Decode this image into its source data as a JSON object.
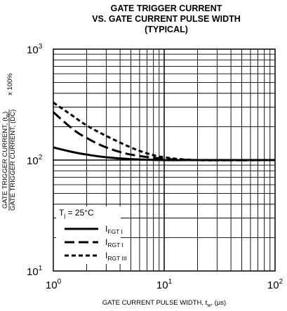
{
  "chart_data": {
    "type": "line",
    "title": [
      "GATE TRIGGER CURRENT",
      "VS. GATE CURRENT PULSE WIDTH",
      "(TYPICAL)"
    ],
    "x_scale": "log",
    "y_scale": "log",
    "xlim": [
      1,
      100
    ],
    "ylim": [
      10,
      1000
    ],
    "x_ticks": [
      {
        "base": "10",
        "exp": "0"
      },
      {
        "base": "10",
        "exp": "1"
      },
      {
        "base": "10",
        "exp": "2"
      }
    ],
    "y_ticks": [
      {
        "base": "10",
        "exp": "1"
      },
      {
        "base": "10",
        "exp": "2"
      },
      {
        "base": "10",
        "exp": "3"
      }
    ],
    "xlabel": {
      "main": "GATE CURRENT PULSE WIDTH, t",
      "sub": "w",
      "tail": ", (µs)"
    },
    "ylabel": {
      "line1_main": "GATE TRIGGER CURRENT, (t",
      "line1_sub": "w",
      "line1_tail": ")",
      "line2_main": "GATE TRIGGER CURRENT, (DC)",
      "multiplier": "x 100%"
    },
    "grid": true,
    "legend_placement": "bottom-left",
    "legend_title": {
      "main": "T",
      "sub": "j",
      "tail": " = 25°C"
    },
    "series": [
      {
        "name_main": "I",
        "name_sub": "FGT I",
        "style": "solid",
        "x": [
          1,
          1.5,
          2,
          3,
          5,
          10,
          20,
          100
        ],
        "y": [
          130,
          118,
          112,
          106,
          102,
          100,
          100,
          100
        ]
      },
      {
        "name_main": "I",
        "name_sub": "RGT I",
        "style": "long-dash",
        "x": [
          1,
          1.5,
          2,
          3,
          5,
          10,
          20,
          100
        ],
        "y": [
          270,
          190,
          158,
          130,
          112,
          103,
          100,
          100
        ]
      },
      {
        "name_main": "I",
        "name_sub": "RGT III",
        "style": "short-dash",
        "x": [
          1,
          1.5,
          2,
          3,
          5,
          7,
          10,
          20,
          100
        ],
        "y": [
          330,
          250,
          205,
          165,
          130,
          115,
          106,
          100,
          100
        ]
      }
    ]
  }
}
